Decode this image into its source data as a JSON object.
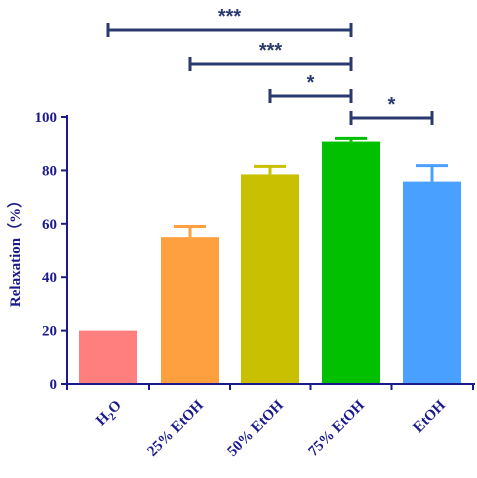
{
  "chart_data": {
    "type": "bar",
    "title": "",
    "xlabel": "",
    "ylabel": "Relaxation（%）",
    "ylim": [
      0,
      100
    ],
    "yticks": [
      0,
      20,
      40,
      60,
      80,
      100
    ],
    "categories": [
      {
        "main": "H",
        "sub": "2",
        "tail": "O"
      },
      {
        "main": "25% EtOH",
        "sub": "",
        "tail": ""
      },
      {
        "main": "50% EtOH",
        "sub": "",
        "tail": ""
      },
      {
        "main": "75% EtOH",
        "sub": "",
        "tail": ""
      },
      {
        "main": "EtOH",
        "sub": "",
        "tail": ""
      }
    ],
    "values": [
      20,
      55,
      78.5,
      90.8,
      75.8
    ],
    "errors": [
      0,
      4,
      3,
      1.2,
      6
    ],
    "colors": [
      "#ff7f7f",
      "#ffa040",
      "#c8c000",
      "#00c000",
      "#4aa0ff"
    ],
    "significance": [
      {
        "from": 0,
        "to": 3,
        "label": "***"
      },
      {
        "from": 1,
        "to": 3,
        "label": "***"
      },
      {
        "from": 2,
        "to": 3,
        "label": "*"
      },
      {
        "from": 3,
        "to": 4,
        "label": "*"
      }
    ],
    "axis_color": "#1a1a8c",
    "bracket_color": "#2a3a6e",
    "grid": false
  }
}
